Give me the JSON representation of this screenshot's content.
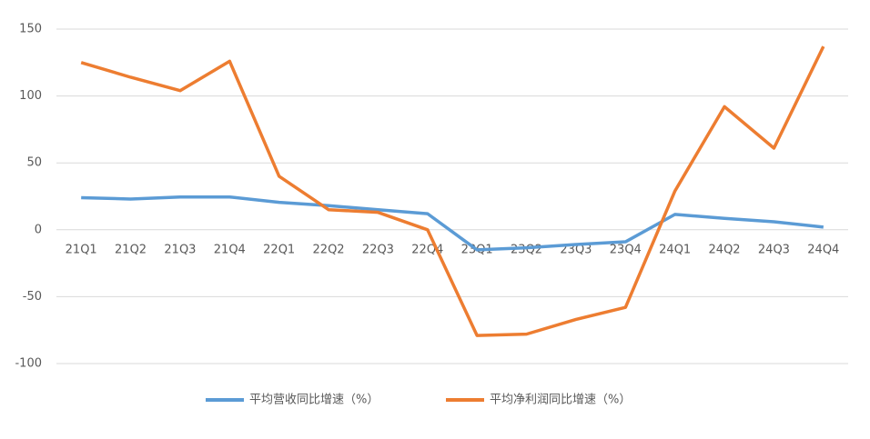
{
  "chart_data": {
    "type": "line",
    "categories": [
      "21Q1",
      "21Q2",
      "21Q3",
      "21Q4",
      "22Q1",
      "22Q2",
      "22Q3",
      "22Q4",
      "23Q1",
      "23Q2",
      "23Q3",
      "23Q4",
      "24Q1",
      "24Q2",
      "24Q3",
      "24Q4"
    ],
    "series": [
      {
        "name": "平均营收同比增速（%）",
        "color": "#5b9bd5",
        "values": [
          24,
          23,
          24.5,
          24.5,
          20.5,
          18,
          15,
          12,
          -15,
          -13.5,
          -11,
          -9,
          11.5,
          8.5,
          6,
          2
        ]
      },
      {
        "name": "平均净利润同比增速（%）",
        "color": "#ed7d31",
        "values": [
          125,
          114,
          104,
          126,
          40,
          15,
          13,
          0,
          -79,
          -78,
          -67,
          -58,
          29,
          92,
          61,
          137
        ]
      }
    ],
    "ylim": [
      -100,
      150
    ],
    "yticks": [
      -100,
      -50,
      0,
      50,
      100,
      150
    ],
    "grid": true,
    "legend": "bottom"
  }
}
